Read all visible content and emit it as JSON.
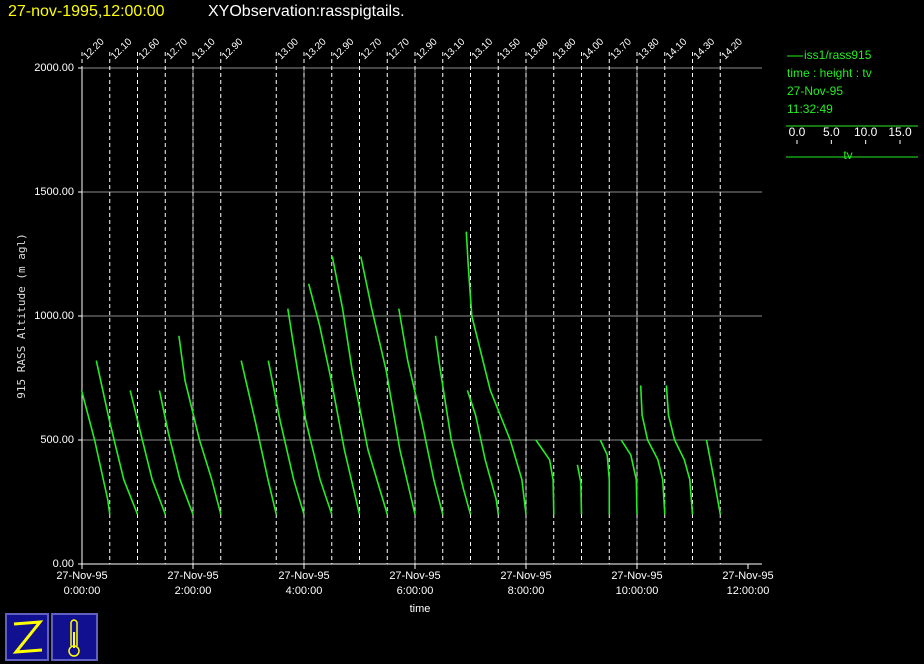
{
  "chart_data": {
    "type": "pigtail",
    "date": "27-nov-1995,12:00:00",
    "title": "XYObservation:rasspigtails.",
    "ylabel": "915 RASS Altitude (m agl)",
    "xlabel": "time",
    "xlim": [
      0,
      12
    ],
    "xticks": [
      {
        "value": 0,
        "label": "27-Nov-95 0:00:00"
      },
      {
        "value": 2,
        "label": "27-Nov-95 2:00:00"
      },
      {
        "value": 4,
        "label": "27-Nov-95 4:00:00"
      },
      {
        "value": 6,
        "label": "27-Nov-95 6:00:00"
      },
      {
        "value": 8,
        "label": "27-Nov-95 8:00:00"
      },
      {
        "value": 10,
        "label": "27-Nov-95 10:00:00"
      },
      {
        "value": 12,
        "label": "27-Nov-95 12:00:00"
      }
    ],
    "ylim": [
      0,
      2000
    ],
    "yticks": [
      {
        "value": 0,
        "label": "0.00"
      },
      {
        "value": 500,
        "label": "500.00"
      },
      {
        "value": 1000,
        "label": "1000.00"
      },
      {
        "value": 1500,
        "label": "1500.00"
      },
      {
        "value": 2000,
        "label": "2000.00"
      }
    ],
    "grid": true,
    "reference_lines": [
      {
        "time": 0,
        "tv": {
          "value": 12.2,
          "label": "12.20"
        }
      },
      {
        "time": 0.5,
        "tv": {
          "value": 12.1,
          "label": "12.10"
        }
      },
      {
        "time": 1,
        "tv": {
          "value": 12.6,
          "label": "12.60"
        }
      },
      {
        "time": 1.5,
        "tv": {
          "value": 12.7,
          "label": "12.70"
        }
      },
      {
        "time": 2,
        "tv": {
          "value": 13.1,
          "label": "13.10"
        }
      },
      {
        "time": 2.5,
        "tv": {
          "value": 12.9,
          "label": "12.90"
        }
      },
      {
        "time": 3.5,
        "tv": {
          "value": 13.0,
          "label": "13.00"
        }
      },
      {
        "time": 4,
        "tv": {
          "value": 13.2,
          "label": "13.20"
        }
      },
      {
        "time": 4.5,
        "tv": {
          "value": 12.9,
          "label": "12.90"
        }
      },
      {
        "time": 5,
        "tv": {
          "value": 12.7,
          "label": "12.70"
        }
      },
      {
        "time": 5.5,
        "tv": {
          "value": 12.7,
          "label": "12.70"
        }
      },
      {
        "time": 6,
        "tv": {
          "value": 12.9,
          "label": "12.90"
        }
      },
      {
        "time": 6.5,
        "tv": {
          "value": 13.1,
          "label": "13.10"
        }
      },
      {
        "time": 7,
        "tv": {
          "value": 13.1,
          "label": "13.10"
        }
      },
      {
        "time": 7.5,
        "tv": {
          "value": 13.5,
          "label": "13.50"
        }
      },
      {
        "time": 8,
        "tv": {
          "value": 13.8,
          "label": "13.80"
        }
      },
      {
        "time": 8.5,
        "tv": {
          "value": 13.8,
          "label": "13.80"
        }
      },
      {
        "time": 9,
        "tv": {
          "value": 14.0,
          "label": "14.00"
        }
      },
      {
        "time": 9.5,
        "tv": {
          "value": 13.7,
          "label": "13.70"
        }
      },
      {
        "time": 10,
        "tv": {
          "value": 13.8,
          "label": "13.80"
        }
      },
      {
        "time": 10.5,
        "tv": {
          "value": 14.1,
          "label": "14.10"
        }
      },
      {
        "time": 11,
        "tv": {
          "value": 14.3,
          "label": "14.30"
        }
      },
      {
        "time": 11.5,
        "tv": {
          "value": 14.2,
          "label": "14.20"
        }
      }
    ],
    "series": [
      {
        "name": "iss1/rass915",
        "color": "#22ee22",
        "profiles": [
          {
            "time": 0.5,
            "height": [
              700,
              500,
              260,
              200
            ],
            "tv": [
              8.0,
              9.9,
              11.8,
              12.1
            ]
          },
          {
            "time": 1,
            "height": [
              820,
              580,
              340,
              200
            ],
            "tv": [
              6.6,
              8.5,
              10.6,
              12.6
            ]
          },
          {
            "time": 1.5,
            "height": [
              700,
              530,
              340,
              200
            ],
            "tv": [
              7.6,
              9.1,
              10.8,
              12.7
            ]
          },
          {
            "time": 2,
            "height": [
              700,
              530,
              340,
              200
            ],
            "tv": [
              8.2,
              9.5,
              11.2,
              13.1
            ]
          },
          {
            "time": 2.5,
            "height": [
              920,
              740,
              500,
              340,
              200
            ],
            "tv": [
              6.8,
              7.7,
              9.8,
              11.6,
              12.9
            ]
          },
          {
            "time": 3.5,
            "height": [
              820,
              580,
              340,
              200
            ],
            "tv": [
              7.9,
              9.9,
              11.8,
              13.0
            ]
          },
          {
            "time": 4,
            "height": [
              820,
              580,
              340,
              200
            ],
            "tv": [
              8.0,
              9.7,
              11.7,
              13.2
            ]
          },
          {
            "time": 4.5,
            "height": [
              1030,
              820,
              580,
              340,
              200
            ],
            "tv": [
              6.5,
              7.7,
              9.1,
              11.2,
              12.9
            ]
          },
          {
            "time": 5,
            "height": [
              1130,
              960,
              740,
              460,
              200
            ],
            "tv": [
              5.3,
              6.9,
              8.6,
              10.5,
              12.7
            ]
          },
          {
            "time": 5.5,
            "height": [
              1240,
              1030,
              780,
              460,
              200
            ],
            "tv": [
              4.7,
              6.2,
              7.6,
              9.9,
              12.7
            ]
          },
          {
            "time": 6,
            "height": [
              1240,
              1030,
              780,
              460,
              200
            ],
            "tv": [
              5.0,
              6.6,
              8.7,
              10.7,
              12.9
            ]
          },
          {
            "time": 6.5,
            "height": [
              1030,
              820,
              580,
              340,
              200
            ],
            "tv": [
              6.7,
              8.0,
              10.0,
              11.8,
              13.1
            ]
          },
          {
            "time": 7,
            "height": [
              920,
              800,
              500,
              300,
              200
            ],
            "tv": [
              8.0,
              8.6,
              10.3,
              12.1,
              13.1
            ]
          },
          {
            "time": 7.5,
            "height": [
              700,
              600,
              420,
              260,
              200
            ],
            "tv": [
              9.0,
              10.2,
              11.6,
              13.2,
              13.5
            ]
          },
          {
            "time": 8,
            "height": [
              1340,
              1200,
              1000,
              700,
              500,
              340,
              200
            ],
            "tv": [
              5.1,
              5.4,
              5.9,
              8.6,
              11.5,
              13.2,
              13.8
            ]
          },
          {
            "time": 8.5,
            "height": [
              500,
              420,
              340,
              200
            ],
            "tv": [
              11.2,
              13.2,
              13.7,
              13.8
            ]
          },
          {
            "time": 9,
            "height": [
              400,
              330,
              200
            ],
            "tv": [
              13.4,
              13.9,
              14.0
            ]
          },
          {
            "time": 9.5,
            "height": [
              500,
              440,
              340,
              200
            ],
            "tv": [
              12.4,
              13.4,
              13.7,
              13.7
            ]
          },
          {
            "time": 10,
            "height": [
              500,
              440,
              340,
              200
            ],
            "tv": [
              11.5,
              12.9,
              13.7,
              13.8
            ]
          },
          {
            "time": 10.5,
            "height": [
              720,
              600,
              500,
              420,
              340,
              200
            ],
            "tv": [
              10.6,
              10.8,
              11.6,
              13.1,
              13.8,
              14.1
            ]
          },
          {
            "time": 11,
            "height": [
              720,
              600,
              500,
              420,
              340,
              200
            ],
            "tv": [
              10.5,
              10.8,
              11.7,
              13.1,
              13.9,
              14.3
            ]
          },
          {
            "time": 11.5,
            "height": [
              500,
              340,
              200
            ],
            "tv": [
              12.2,
              13.3,
              14.2
            ]
          }
        ]
      }
    ],
    "legend": {
      "fields": "time : height : tv",
      "date": "27-Nov-95",
      "time": "11:32:49",
      "scale_label": "tv"
    },
    "tvlim": [
      0,
      15
    ],
    "tvticks": [
      {
        "value": 0,
        "label": "0.0"
      },
      {
        "value": 5,
        "label": "5.0"
      },
      {
        "value": 10,
        "label": "10.0"
      },
      {
        "value": 15,
        "label": "15.0"
      }
    ]
  }
}
